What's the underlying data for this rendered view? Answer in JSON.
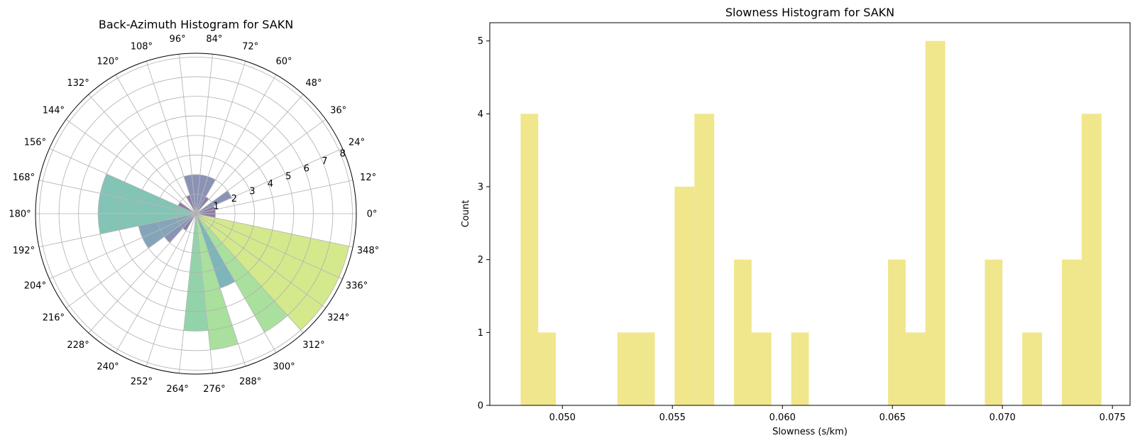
{
  "chart_data": [
    {
      "type": "polar-bar",
      "title": "Back-Azimuth Histogram for SAKN",
      "angle_ticks": [
        "0°",
        "12°",
        "24°",
        "36°",
        "48°",
        "60°",
        "72°",
        "84°",
        "96°",
        "108°",
        "120°",
        "132°",
        "144°",
        "156°",
        "168°",
        "180°",
        "192°",
        "204°",
        "216°",
        "228°",
        "240°",
        "252°",
        "264°",
        "276°",
        "288°",
        "300°",
        "312°",
        "324°",
        "336°",
        "348°"
      ],
      "radial_ticks": [
        "1",
        "2",
        "3",
        "4",
        "5",
        "6",
        "7",
        "8"
      ],
      "rlim": [
        0,
        8.2
      ],
      "colormap": "viridis",
      "bars": [
        {
          "start_deg": 348,
          "end_deg": 360,
          "count": 1
        },
        {
          "start_deg": 0,
          "end_deg": 12,
          "count": 1
        },
        {
          "start_deg": 12,
          "end_deg": 24,
          "count": 1
        },
        {
          "start_deg": 24,
          "end_deg": 36,
          "count": 2
        },
        {
          "start_deg": 48,
          "end_deg": 60,
          "count": 1
        },
        {
          "start_deg": 60,
          "end_deg": 72,
          "count": 2
        },
        {
          "start_deg": 72,
          "end_deg": 84,
          "count": 2
        },
        {
          "start_deg": 84,
          "end_deg": 96,
          "count": 2
        },
        {
          "start_deg": 96,
          "end_deg": 108,
          "count": 2
        },
        {
          "start_deg": 108,
          "end_deg": 120,
          "count": 1
        },
        {
          "start_deg": 144,
          "end_deg": 156,
          "count": 1
        },
        {
          "start_deg": 156,
          "end_deg": 168,
          "count": 5
        },
        {
          "start_deg": 168,
          "end_deg": 180,
          "count": 5
        },
        {
          "start_deg": 180,
          "end_deg": 192,
          "count": 5
        },
        {
          "start_deg": 192,
          "end_deg": 204,
          "count": 3
        },
        {
          "start_deg": 204,
          "end_deg": 216,
          "count": 3
        },
        {
          "start_deg": 216,
          "end_deg": 228,
          "count": 2
        },
        {
          "start_deg": 228,
          "end_deg": 240,
          "count": 1
        },
        {
          "start_deg": 264,
          "end_deg": 276,
          "count": 6
        },
        {
          "start_deg": 276,
          "end_deg": 288,
          "count": 7
        },
        {
          "start_deg": 288,
          "end_deg": 300,
          "count": 4
        },
        {
          "start_deg": 300,
          "end_deg": 312,
          "count": 7
        },
        {
          "start_deg": 312,
          "end_deg": 324,
          "count": 8
        },
        {
          "start_deg": 324,
          "end_deg": 336,
          "count": 8
        },
        {
          "start_deg": 336,
          "end_deg": 348,
          "count": 8
        }
      ]
    },
    {
      "type": "bar",
      "title": "Slowness Histogram for SAKN",
      "xlabel": "Slowness (s/km)",
      "ylabel": "Count",
      "xlim": [
        0.0467,
        0.0758
      ],
      "ylim": [
        0,
        5.25
      ],
      "x_ticks": [
        "0.050",
        "0.055",
        "0.060",
        "0.065",
        "0.070",
        "0.075"
      ],
      "y_ticks": [
        "0",
        "1",
        "2",
        "3",
        "4",
        "5"
      ],
      "bar_color": "#f0e68c",
      "bins": [
        {
          "x0": 0.0481,
          "x1": 0.0489,
          "count": 4
        },
        {
          "x0": 0.0489,
          "x1": 0.0497,
          "count": 1
        },
        {
          "x0": 0.0525,
          "x1": 0.0534,
          "count": 1
        },
        {
          "x0": 0.0534,
          "x1": 0.0542,
          "count": 1
        },
        {
          "x0": 0.0551,
          "x1": 0.056,
          "count": 3
        },
        {
          "x0": 0.056,
          "x1": 0.0569,
          "count": 4
        },
        {
          "x0": 0.0578,
          "x1": 0.0586,
          "count": 2
        },
        {
          "x0": 0.0586,
          "x1": 0.0595,
          "count": 1
        },
        {
          "x0": 0.0604,
          "x1": 0.0612,
          "count": 1
        },
        {
          "x0": 0.0648,
          "x1": 0.0656,
          "count": 2
        },
        {
          "x0": 0.0656,
          "x1": 0.0665,
          "count": 1
        },
        {
          "x0": 0.0665,
          "x1": 0.0674,
          "count": 5
        },
        {
          "x0": 0.0692,
          "x1": 0.07,
          "count": 2
        },
        {
          "x0": 0.0709,
          "x1": 0.0718,
          "count": 1
        },
        {
          "x0": 0.0727,
          "x1": 0.0736,
          "count": 2
        },
        {
          "x0": 0.0736,
          "x1": 0.0745,
          "count": 4
        }
      ]
    }
  ]
}
